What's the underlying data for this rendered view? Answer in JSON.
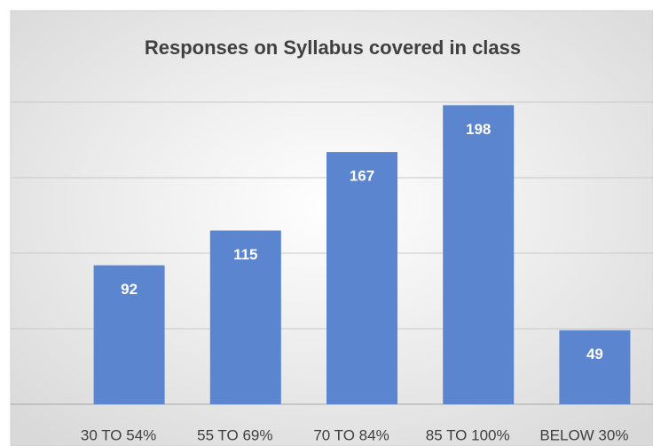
{
  "chart_data": {
    "type": "bar",
    "title": "Responses on Syllabus covered in class",
    "categories": [
      "30 TO 54%",
      "55 TO 69%",
      "70 TO 84%",
      "85 TO 100%",
      "BELOW 30%"
    ],
    "values": [
      92,
      115,
      167,
      198,
      49
    ],
    "color": "#5b85cf",
    "ylim": [
      0,
      200
    ],
    "gridlines": [
      0,
      50,
      100,
      150,
      200
    ],
    "grid": true
  }
}
